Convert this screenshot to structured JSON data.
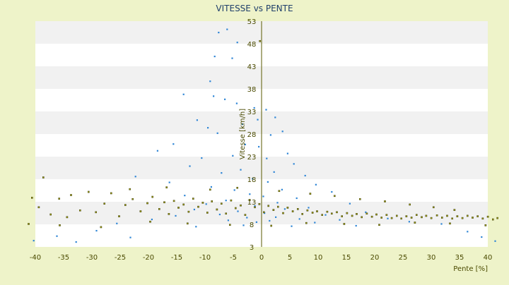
{
  "chart_data": {
    "type": "scatter",
    "title": "VITESSE vs PENTE",
    "xlabel": "Pente [%]",
    "ylabel": "Vitesse [km/h]",
    "xlim": [
      -40,
      40
    ],
    "ylim": [
      3,
      53
    ],
    "xticks": [
      -40,
      -35,
      -30,
      -25,
      -20,
      -15,
      -10,
      -5,
      0,
      5,
      10,
      15,
      20,
      25,
      30,
      35,
      40
    ],
    "yticks": [
      3,
      8,
      13,
      18,
      23,
      28,
      33,
      38,
      43,
      48,
      53
    ],
    "grid": "horizontal alternating bands",
    "series": [
      {
        "color": "#2f86d6",
        "marker": "dot",
        "points": [
          [
            -7.6,
            50.5
          ],
          [
            -6.1,
            51.2
          ],
          [
            -4.3,
            48.3
          ],
          [
            -5.2,
            44.8
          ],
          [
            -8.3,
            45.2
          ],
          [
            -9.1,
            39.7
          ],
          [
            -8.5,
            36.4
          ],
          [
            -13.8,
            36.8
          ],
          [
            -6.5,
            35.7
          ],
          [
            -4.4,
            34.8
          ],
          [
            -1.3,
            33.8
          ],
          [
            0.8,
            33.4
          ],
          [
            -0.7,
            31.2
          ],
          [
            2.4,
            31.7
          ],
          [
            -11.4,
            31.1
          ],
          [
            -9.5,
            29.4
          ],
          [
            -7.8,
            28.2
          ],
          [
            -3.4,
            30.2
          ],
          [
            1.6,
            27.8
          ],
          [
            3.7,
            28.6
          ],
          [
            -2.9,
            25.7
          ],
          [
            -0.5,
            25.2
          ],
          [
            -15.6,
            25.8
          ],
          [
            -18.4,
            24.3
          ],
          [
            4.6,
            23.7
          ],
          [
            -5.1,
            23.2
          ],
          [
            0.9,
            22.6
          ],
          [
            -10.6,
            22.7
          ],
          [
            -12.7,
            20.9
          ],
          [
            5.7,
            21.4
          ],
          [
            -3.7,
            20.1
          ],
          [
            2.2,
            19.6
          ],
          [
            -7.1,
            19.4
          ],
          [
            7.7,
            18.8
          ],
          [
            -1.6,
            18.1
          ],
          [
            1.1,
            17.4
          ],
          [
            -22.3,
            18.6
          ],
          [
            -16.3,
            17.3
          ],
          [
            9.6,
            16.8
          ],
          [
            -8.9,
            16.3
          ],
          [
            3.6,
            15.7
          ],
          [
            -4.8,
            15.6
          ],
          [
            12.4,
            15.2
          ],
          [
            -2.1,
            14.7
          ],
          [
            0.3,
            14.2
          ],
          [
            -13.6,
            14.4
          ],
          [
            6.2,
            13.8
          ],
          [
            -6.3,
            13.3
          ],
          [
            2.8,
            12.8
          ],
          [
            15.6,
            12.6
          ],
          [
            -9.8,
            12.5
          ],
          [
            -1.2,
            12.1
          ],
          [
            8.3,
            11.7
          ],
          [
            -11.9,
            11.3
          ],
          [
            4.1,
            11.4
          ],
          [
            -4.2,
            10.9
          ],
          [
            18.4,
            10.7
          ],
          [
            0.5,
            10.5
          ],
          [
            -7.4,
            10.2
          ],
          [
            11.3,
            10.1
          ],
          [
            -15.2,
            9.9
          ],
          [
            2.5,
            9.6
          ],
          [
            -2.6,
            9.5
          ],
          [
            22.3,
            9.3
          ],
          [
            6.7,
            9.2
          ],
          [
            -19.4,
            9.1
          ],
          [
            13.8,
            9.0
          ],
          [
            -5.9,
            8.9
          ],
          [
            1.4,
            8.8
          ],
          [
            26.1,
            8.6
          ],
          [
            -0.9,
            8.5
          ],
          [
            9.4,
            8.4
          ],
          [
            -25.6,
            8.2
          ],
          [
            31.8,
            8.1
          ],
          [
            -3.2,
            7.8
          ],
          [
            16.7,
            7.7
          ],
          [
            5.3,
            7.6
          ],
          [
            -11.6,
            7.5
          ],
          [
            -29.2,
            6.6
          ],
          [
            36.4,
            6.4
          ],
          [
            -36.2,
            5.4
          ],
          [
            38.9,
            5.2
          ],
          [
            -40.3,
            4.4
          ],
          [
            41.3,
            4.3
          ],
          [
            -32.8,
            4.1
          ],
          [
            -23.2,
            5.1
          ]
        ]
      },
      {
        "color": "#9b9b14",
        "marker": "dot",
        "points": [
          [
            -41.2,
            8.1
          ],
          [
            -40.6,
            13.9
          ],
          [
            -39.4,
            11.8
          ],
          [
            -38.6,
            18.4
          ],
          [
            -37.3,
            10.2
          ],
          [
            -35.8,
            13.7
          ],
          [
            -34.4,
            9.6
          ],
          [
            -33.7,
            14.5
          ],
          [
            -32.1,
            11.1
          ],
          [
            -30.6,
            15.2
          ],
          [
            -29.3,
            10.7
          ],
          [
            -27.8,
            12.6
          ],
          [
            -26.6,
            14.9
          ],
          [
            -25.2,
            9.8
          ],
          [
            -24.1,
            12.3
          ],
          [
            -22.8,
            13.6
          ],
          [
            -21.4,
            10.9
          ],
          [
            -20.2,
            12.7
          ],
          [
            -19.3,
            14.1
          ],
          [
            -18.1,
            11.4
          ],
          [
            -17.2,
            12.9
          ],
          [
            -16.4,
            10.3
          ],
          [
            -15.5,
            13.2
          ],
          [
            -14.7,
            11.7
          ],
          [
            -13.8,
            12.4
          ],
          [
            -12.9,
            10.8
          ],
          [
            -12.1,
            13.7
          ],
          [
            -11.2,
            11.9
          ],
          [
            -10.4,
            12.8
          ],
          [
            -9.6,
            10.6
          ],
          [
            -8.8,
            13.1
          ],
          [
            -7.9,
            11.3
          ],
          [
            -7.1,
            12.6
          ],
          [
            -6.3,
            10.4
          ],
          [
            -5.4,
            13.3
          ],
          [
            -4.6,
            11.6
          ],
          [
            -3.7,
            12.2
          ],
          [
            -2.9,
            10.1
          ],
          [
            -2.1,
            13.4
          ],
          [
            -1.2,
            11.8
          ],
          [
            -0.4,
            12.5
          ],
          [
            0.4,
            10.7
          ],
          [
            1.2,
            12.1
          ],
          [
            2.1,
            11.2
          ],
          [
            2.9,
            11.9
          ],
          [
            3.8,
            10.5
          ],
          [
            4.6,
            11.7
          ],
          [
            5.5,
            10.9
          ],
          [
            6.4,
            11.4
          ],
          [
            7.2,
            10.3
          ],
          [
            8.1,
            11.1
          ],
          [
            9.0,
            10.6
          ],
          [
            9.8,
            10.9
          ],
          [
            10.7,
            10.1
          ],
          [
            11.6,
            10.8
          ],
          [
            12.4,
            10.4
          ],
          [
            13.3,
            10.7
          ],
          [
            14.2,
            9.8
          ],
          [
            15.1,
            10.5
          ],
          [
            16.0,
            9.9
          ],
          [
            16.8,
            10.3
          ],
          [
            17.7,
            9.6
          ],
          [
            18.6,
            10.4
          ],
          [
            19.5,
            9.7
          ],
          [
            20.3,
            10.2
          ],
          [
            21.2,
            9.5
          ],
          [
            22.1,
            10.1
          ],
          [
            23.0,
            9.4
          ],
          [
            23.9,
            9.9
          ],
          [
            24.7,
            9.3
          ],
          [
            25.6,
            9.8
          ],
          [
            26.5,
            9.5
          ],
          [
            27.4,
            10.1
          ],
          [
            28.3,
            9.6
          ],
          [
            29.1,
            9.9
          ],
          [
            30.0,
            9.4
          ],
          [
            31.0,
            10.0
          ],
          [
            31.9,
            9.5
          ],
          [
            32.8,
            9.9
          ],
          [
            33.7,
            9.3
          ],
          [
            34.6,
            9.8
          ],
          [
            35.5,
            9.4
          ],
          [
            36.4,
            9.9
          ],
          [
            37.3,
            9.5
          ],
          [
            38.2,
            9.8
          ],
          [
            39.1,
            9.3
          ],
          [
            40.0,
            9.7
          ],
          [
            40.9,
            9.1
          ],
          [
            41.7,
            9.4
          ],
          [
            -23.3,
            15.8
          ],
          [
            -16.8,
            16.2
          ],
          [
            -9.1,
            15.7
          ],
          [
            -4.3,
            16.1
          ],
          [
            3.1,
            15.4
          ],
          [
            8.6,
            14.8
          ],
          [
            12.9,
            14.3
          ],
          [
            17.4,
            13.6
          ],
          [
            21.8,
            13.1
          ],
          [
            26.2,
            12.4
          ],
          [
            30.4,
            11.8
          ],
          [
            34.1,
            11.2
          ],
          [
            -0.3,
            48.6
          ],
          [
            -35.7,
            7.8
          ],
          [
            -28.4,
            7.4
          ],
          [
            -19.7,
            8.6
          ],
          [
            -13.1,
            8.2
          ],
          [
            -5.6,
            7.9
          ],
          [
            1.7,
            7.7
          ],
          [
            7.9,
            8.3
          ],
          [
            14.6,
            8.1
          ],
          [
            20.8,
            7.9
          ],
          [
            27.1,
            8.4
          ],
          [
            33.3,
            8.2
          ],
          [
            39.6,
            7.8
          ]
        ]
      }
    ]
  }
}
